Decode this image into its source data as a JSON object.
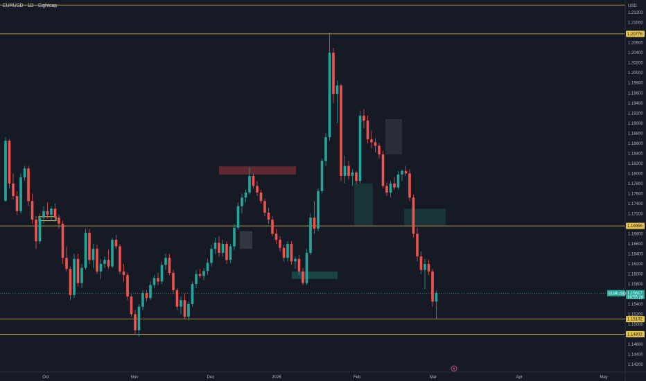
{
  "chart_data": {
    "type": "candlestick",
    "title": "EURUSD · 1D · Eightcap",
    "currency": "USD",
    "symbol_label": "EURUSD",
    "current_price": "1.15617",
    "countdown": "16:55:26",
    "y_ticks": [
      "1.21200",
      "1.21000",
      "1.20600",
      "1.20400",
      "1.20200",
      "1.20000",
      "1.19800",
      "1.19600",
      "1.19400",
      "1.19200",
      "1.19000",
      "1.18800",
      "1.18600",
      "1.18400",
      "1.18200",
      "1.18000",
      "1.17800",
      "1.17600",
      "1.17400",
      "1.17200",
      "1.16800",
      "1.16600",
      "1.16400",
      "1.16200",
      "1.16000",
      "1.15800",
      "1.15600",
      "1.15400",
      "1.15200",
      "1.15000",
      "1.14600",
      "1.14400",
      "1.14200"
    ],
    "x_ticks": [
      "Oct",
      "Nov",
      "Dec",
      "2026",
      "Feb",
      "Mar",
      "Apr",
      "May"
    ],
    "horizontal_levels": [
      {
        "value": 1.20776,
        "label": "1.20776"
      },
      {
        "value": 1.16956,
        "label": "1.16956"
      },
      {
        "value": 1.15102,
        "label": "1.15102"
      },
      {
        "value": 1.14802,
        "label": "1.14802"
      }
    ],
    "top_line_value": 1.2135,
    "price_line_value": 1.15617,
    "ylim": [
      1.1405,
      1.2145
    ],
    "zones": [
      {
        "x0": 56,
        "x1": 81,
        "y0": 1.1714,
        "y1": 1.1706,
        "color": "#E8C34A",
        "type": "outline"
      },
      {
        "x0": 316,
        "x1": 427,
        "y0": 1.1814,
        "y1": 1.1798,
        "color": "#A0343C",
        "type": "fill"
      },
      {
        "x0": 346,
        "x1": 364,
        "y0": 1.1685,
        "y1": 1.165,
        "color": "#4A4E5A",
        "type": "fill"
      },
      {
        "x0": 421,
        "x1": 487,
        "y0": 1.1605,
        "y1": 1.159,
        "color": "#1E6A62",
        "type": "fill"
      },
      {
        "x0": 511,
        "x1": 538,
        "y0": 1.178,
        "y1": 1.1697,
        "color": "#1B4A47",
        "type": "fill"
      },
      {
        "x0": 556,
        "x1": 580,
        "y0": 1.1908,
        "y1": 1.1838,
        "color": "#3A3E4A",
        "type": "fill"
      },
      {
        "x0": 583,
        "x1": 643,
        "y0": 1.173,
        "y1": 1.1697,
        "color": "#1E4A4A",
        "type": "fill"
      }
    ],
    "candles": [
      {
        "o": 1.1745,
        "h": 1.1872,
        "l": 1.1745,
        "c": 1.1865
      },
      {
        "o": 1.1865,
        "h": 1.1868,
        "l": 1.177,
        "c": 1.178
      },
      {
        "o": 1.178,
        "h": 1.18,
        "l": 1.1748,
        "c": 1.1755
      },
      {
        "o": 1.1755,
        "h": 1.1765,
        "l": 1.1718,
        "c": 1.1725
      },
      {
        "o": 1.1725,
        "h": 1.18,
        "l": 1.172,
        "c": 1.1792
      },
      {
        "o": 1.1792,
        "h": 1.1815,
        "l": 1.1785,
        "c": 1.181
      },
      {
        "o": 1.181,
        "h": 1.1815,
        "l": 1.1735,
        "c": 1.1745
      },
      {
        "o": 1.1745,
        "h": 1.176,
        "l": 1.17,
        "c": 1.1708
      },
      {
        "o": 1.1708,
        "h": 1.1715,
        "l": 1.165,
        "c": 1.1665
      },
      {
        "o": 1.1665,
        "h": 1.172,
        "l": 1.166,
        "c": 1.1712
      },
      {
        "o": 1.1712,
        "h": 1.1735,
        "l": 1.17,
        "c": 1.1725
      },
      {
        "o": 1.1725,
        "h": 1.1742,
        "l": 1.171,
        "c": 1.1718
      },
      {
        "o": 1.1718,
        "h": 1.1735,
        "l": 1.1705,
        "c": 1.173
      },
      {
        "o": 1.173,
        "h": 1.174,
        "l": 1.1705,
        "c": 1.1712
      },
      {
        "o": 1.1712,
        "h": 1.1718,
        "l": 1.169,
        "c": 1.17
      },
      {
        "o": 1.17,
        "h": 1.1706,
        "l": 1.162,
        "c": 1.1632
      },
      {
        "o": 1.1632,
        "h": 1.1655,
        "l": 1.1605,
        "c": 1.161
      },
      {
        "o": 1.161,
        "h": 1.1615,
        "l": 1.1548,
        "c": 1.1558
      },
      {
        "o": 1.1558,
        "h": 1.164,
        "l": 1.1552,
        "c": 1.163
      },
      {
        "o": 1.163,
        "h": 1.164,
        "l": 1.1575,
        "c": 1.1582
      },
      {
        "o": 1.1582,
        "h": 1.162,
        "l": 1.1572,
        "c": 1.1612
      },
      {
        "o": 1.1612,
        "h": 1.169,
        "l": 1.1608,
        "c": 1.1682
      },
      {
        "o": 1.1682,
        "h": 1.169,
        "l": 1.162,
        "c": 1.1628
      },
      {
        "o": 1.1628,
        "h": 1.166,
        "l": 1.1612,
        "c": 1.165
      },
      {
        "o": 1.165,
        "h": 1.1658,
        "l": 1.16,
        "c": 1.1605
      },
      {
        "o": 1.1605,
        "h": 1.163,
        "l": 1.159,
        "c": 1.162
      },
      {
        "o": 1.162,
        "h": 1.1635,
        "l": 1.1612,
        "c": 1.1628
      },
      {
        "o": 1.1628,
        "h": 1.1648,
        "l": 1.161,
        "c": 1.1615
      },
      {
        "o": 1.1615,
        "h": 1.1672,
        "l": 1.1612,
        "c": 1.1668
      },
      {
        "o": 1.1668,
        "h": 1.1678,
        "l": 1.165,
        "c": 1.1655
      },
      {
        "o": 1.1655,
        "h": 1.166,
        "l": 1.16,
        "c": 1.1605
      },
      {
        "o": 1.1605,
        "h": 1.162,
        "l": 1.1585,
        "c": 1.1598
      },
      {
        "o": 1.1598,
        "h": 1.1602,
        "l": 1.1548,
        "c": 1.1555
      },
      {
        "o": 1.1555,
        "h": 1.156,
        "l": 1.1515,
        "c": 1.152
      },
      {
        "o": 1.152,
        "h": 1.1528,
        "l": 1.148,
        "c": 1.1488
      },
      {
        "o": 1.1488,
        "h": 1.154,
        "l": 1.1475,
        "c": 1.1535
      },
      {
        "o": 1.1535,
        "h": 1.1568,
        "l": 1.1528,
        "c": 1.1562
      },
      {
        "o": 1.1562,
        "h": 1.1568,
        "l": 1.1545,
        "c": 1.1552
      },
      {
        "o": 1.1552,
        "h": 1.1585,
        "l": 1.1548,
        "c": 1.1578
      },
      {
        "o": 1.1578,
        "h": 1.1598,
        "l": 1.1572,
        "c": 1.1592
      },
      {
        "o": 1.1592,
        "h": 1.1602,
        "l": 1.1578,
        "c": 1.1585
      },
      {
        "o": 1.1585,
        "h": 1.1625,
        "l": 1.158,
        "c": 1.1618
      },
      {
        "o": 1.1618,
        "h": 1.164,
        "l": 1.1608,
        "c": 1.1632
      },
      {
        "o": 1.1632,
        "h": 1.164,
        "l": 1.1598,
        "c": 1.1602
      },
      {
        "o": 1.1602,
        "h": 1.1608,
        "l": 1.156,
        "c": 1.1568
      },
      {
        "o": 1.1568,
        "h": 1.1572,
        "l": 1.1528,
        "c": 1.1535
      },
      {
        "o": 1.1535,
        "h": 1.1555,
        "l": 1.152,
        "c": 1.1548
      },
      {
        "o": 1.1548,
        "h": 1.156,
        "l": 1.151,
        "c": 1.1515
      },
      {
        "o": 1.1515,
        "h": 1.1545,
        "l": 1.1508,
        "c": 1.154
      },
      {
        "o": 1.154,
        "h": 1.1585,
        "l": 1.1535,
        "c": 1.158
      },
      {
        "o": 1.158,
        "h": 1.1608,
        "l": 1.1572,
        "c": 1.16
      },
      {
        "o": 1.16,
        "h": 1.161,
        "l": 1.1592,
        "c": 1.1596
      },
      {
        "o": 1.1596,
        "h": 1.1612,
        "l": 1.1588,
        "c": 1.1606
      },
      {
        "o": 1.1606,
        "h": 1.163,
        "l": 1.1598,
        "c": 1.1622
      },
      {
        "o": 1.1622,
        "h": 1.1658,
        "l": 1.1615,
        "c": 1.165
      },
      {
        "o": 1.165,
        "h": 1.1672,
        "l": 1.164,
        "c": 1.1662
      },
      {
        "o": 1.1662,
        "h": 1.1675,
        "l": 1.1635,
        "c": 1.1642
      },
      {
        "o": 1.1642,
        "h": 1.1668,
        "l": 1.1635,
        "c": 1.166
      },
      {
        "o": 1.166,
        "h": 1.1665,
        "l": 1.162,
        "c": 1.1628
      },
      {
        "o": 1.1628,
        "h": 1.166,
        "l": 1.1622,
        "c": 1.1655
      },
      {
        "o": 1.1655,
        "h": 1.17,
        "l": 1.1648,
        "c": 1.1692
      },
      {
        "o": 1.1692,
        "h": 1.1742,
        "l": 1.1688,
        "c": 1.1735
      },
      {
        "o": 1.1735,
        "h": 1.176,
        "l": 1.172,
        "c": 1.1752
      },
      {
        "o": 1.1752,
        "h": 1.1768,
        "l": 1.1742,
        "c": 1.1762
      },
      {
        "o": 1.1762,
        "h": 1.1812,
        "l": 1.1758,
        "c": 1.1795
      },
      {
        "o": 1.1795,
        "h": 1.18,
        "l": 1.177,
        "c": 1.1775
      },
      {
        "o": 1.1775,
        "h": 1.1785,
        "l": 1.1755,
        "c": 1.1762
      },
      {
        "o": 1.1762,
        "h": 1.1768,
        "l": 1.174,
        "c": 1.1745
      },
      {
        "o": 1.1745,
        "h": 1.175,
        "l": 1.1715,
        "c": 1.1722
      },
      {
        "o": 1.1722,
        "h": 1.1732,
        "l": 1.17,
        "c": 1.1708
      },
      {
        "o": 1.1708,
        "h": 1.1715,
        "l": 1.1675,
        "c": 1.168
      },
      {
        "o": 1.168,
        "h": 1.169,
        "l": 1.166,
        "c": 1.1668
      },
      {
        "o": 1.1668,
        "h": 1.1675,
        "l": 1.1645,
        "c": 1.1652
      },
      {
        "o": 1.1652,
        "h": 1.1658,
        "l": 1.1625,
        "c": 1.1632
      },
      {
        "o": 1.1632,
        "h": 1.1665,
        "l": 1.1625,
        "c": 1.166
      },
      {
        "o": 1.166,
        "h": 1.1665,
        "l": 1.1618,
        "c": 1.1625
      },
      {
        "o": 1.1625,
        "h": 1.1635,
        "l": 1.161,
        "c": 1.163
      },
      {
        "o": 1.163,
        "h": 1.1638,
        "l": 1.1598,
        "c": 1.1605
      },
      {
        "o": 1.1605,
        "h": 1.1612,
        "l": 1.1578,
        "c": 1.1582
      },
      {
        "o": 1.1582,
        "h": 1.165,
        "l": 1.1578,
        "c": 1.1642
      },
      {
        "o": 1.1642,
        "h": 1.172,
        "l": 1.1638,
        "c": 1.1712
      },
      {
        "o": 1.1712,
        "h": 1.1745,
        "l": 1.168,
        "c": 1.169
      },
      {
        "o": 1.169,
        "h": 1.177,
        "l": 1.1685,
        "c": 1.1765
      },
      {
        "o": 1.1765,
        "h": 1.183,
        "l": 1.176,
        "c": 1.1825
      },
      {
        "o": 1.1825,
        "h": 1.188,
        "l": 1.1815,
        "c": 1.1872
      },
      {
        "o": 1.1872,
        "h": 1.208,
        "l": 1.1865,
        "c": 1.204
      },
      {
        "o": 1.204,
        "h": 1.205,
        "l": 1.194,
        "c": 1.1958
      },
      {
        "o": 1.1958,
        "h": 1.1985,
        "l": 1.19,
        "c": 1.1975
      },
      {
        "o": 1.1975,
        "h": 1.1978,
        "l": 1.1785,
        "c": 1.1795
      },
      {
        "o": 1.1795,
        "h": 1.1835,
        "l": 1.178,
        "c": 1.1815
      },
      {
        "o": 1.1815,
        "h": 1.1825,
        "l": 1.1788,
        "c": 1.1795
      },
      {
        "o": 1.1795,
        "h": 1.1808,
        "l": 1.1775,
        "c": 1.1802
      },
      {
        "o": 1.1802,
        "h": 1.1805,
        "l": 1.1778,
        "c": 1.1785
      },
      {
        "o": 1.1785,
        "h": 1.1925,
        "l": 1.178,
        "c": 1.1915
      },
      {
        "o": 1.1915,
        "h": 1.1928,
        "l": 1.189,
        "c": 1.1905
      },
      {
        "o": 1.1905,
        "h": 1.1915,
        "l": 1.186,
        "c": 1.1868
      },
      {
        "o": 1.1868,
        "h": 1.1885,
        "l": 1.185,
        "c": 1.1862
      },
      {
        "o": 1.1862,
        "h": 1.187,
        "l": 1.1842,
        "c": 1.1855
      },
      {
        "o": 1.1855,
        "h": 1.186,
        "l": 1.183,
        "c": 1.1838
      },
      {
        "o": 1.1838,
        "h": 1.1845,
        "l": 1.177,
        "c": 1.1775
      },
      {
        "o": 1.1775,
        "h": 1.1782,
        "l": 1.1755,
        "c": 1.1762
      },
      {
        "o": 1.1762,
        "h": 1.1785,
        "l": 1.1752,
        "c": 1.178
      },
      {
        "o": 1.178,
        "h": 1.1792,
        "l": 1.1768,
        "c": 1.1772
      },
      {
        "o": 1.1772,
        "h": 1.1805,
        "l": 1.1768,
        "c": 1.1798
      },
      {
        "o": 1.1798,
        "h": 1.1808,
        "l": 1.1785,
        "c": 1.1805
      },
      {
        "o": 1.1805,
        "h": 1.1815,
        "l": 1.1795,
        "c": 1.18
      },
      {
        "o": 1.18,
        "h": 1.1808,
        "l": 1.1745,
        "c": 1.1752
      },
      {
        "o": 1.1752,
        "h": 1.1758,
        "l": 1.1672,
        "c": 1.168
      },
      {
        "o": 1.168,
        "h": 1.1692,
        "l": 1.1625,
        "c": 1.1635
      },
      {
        "o": 1.1635,
        "h": 1.1645,
        "l": 1.16,
        "c": 1.1608
      },
      {
        "o": 1.1608,
        "h": 1.163,
        "l": 1.157,
        "c": 1.162
      },
      {
        "o": 1.162,
        "h": 1.1628,
        "l": 1.1598,
        "c": 1.1605
      },
      {
        "o": 1.1605,
        "h": 1.161,
        "l": 1.1535,
        "c": 1.1545
      },
      {
        "o": 1.1545,
        "h": 1.1567,
        "l": 1.151,
        "c": 1.1562
      }
    ]
  }
}
